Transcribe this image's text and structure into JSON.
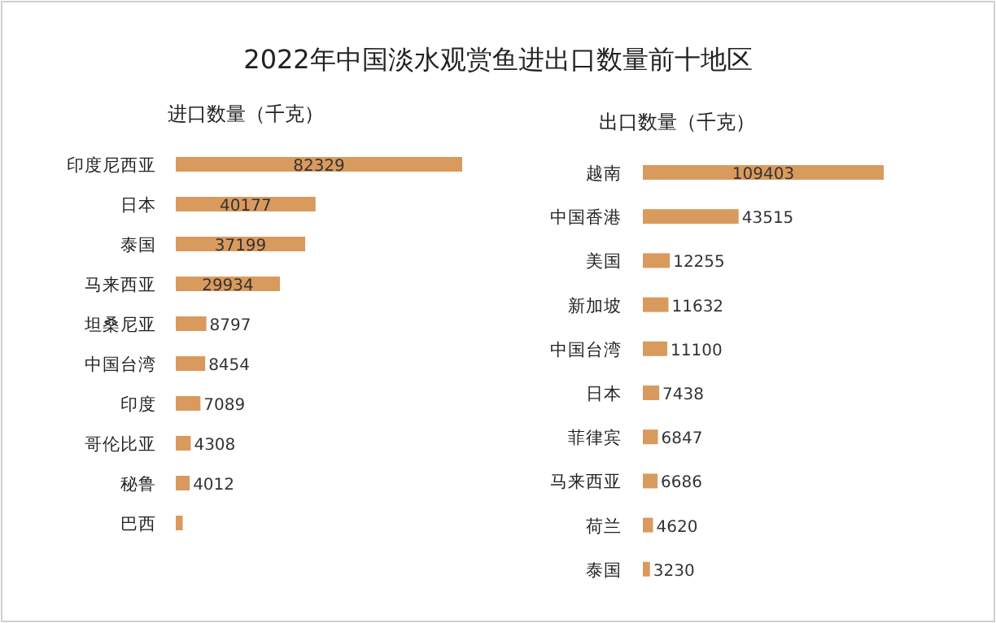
{
  "chart_data": [
    {
      "type": "bar",
      "orientation": "horizontal",
      "title": "2022年中国淡水观赏鱼进出口数量前十地区",
      "subtitle": "进口数量（千克）",
      "color": "#d99a5e",
      "categories": [
        "印度尼西亚",
        "日本",
        "泰国",
        "马来西亚",
        "坦桑尼亚",
        "中国台湾",
        "印度",
        "哥伦比亚",
        "秘鲁",
        "巴西"
      ],
      "values": [
        82329,
        40177,
        37199,
        29934,
        8797,
        8454,
        7089,
        4308,
        4012,
        2000
      ],
      "value_labels": [
        "82329",
        "40177",
        "37199",
        "29934",
        "8797",
        "8454",
        "7089",
        "4308",
        "4012",
        null
      ]
    },
    {
      "type": "bar",
      "orientation": "horizontal",
      "subtitle": "出口数量（千克）",
      "color": "#d99a5e",
      "categories": [
        "越南",
        "中国香港",
        "美国",
        "新加坡",
        "中国台湾",
        "日本",
        "菲律宾",
        "马来西亚",
        "荷兰",
        "泰国"
      ],
      "values": [
        109403,
        43515,
        12255,
        11632,
        11100,
        7438,
        6847,
        6686,
        4620,
        3230
      ],
      "data_labels": true
    }
  ]
}
